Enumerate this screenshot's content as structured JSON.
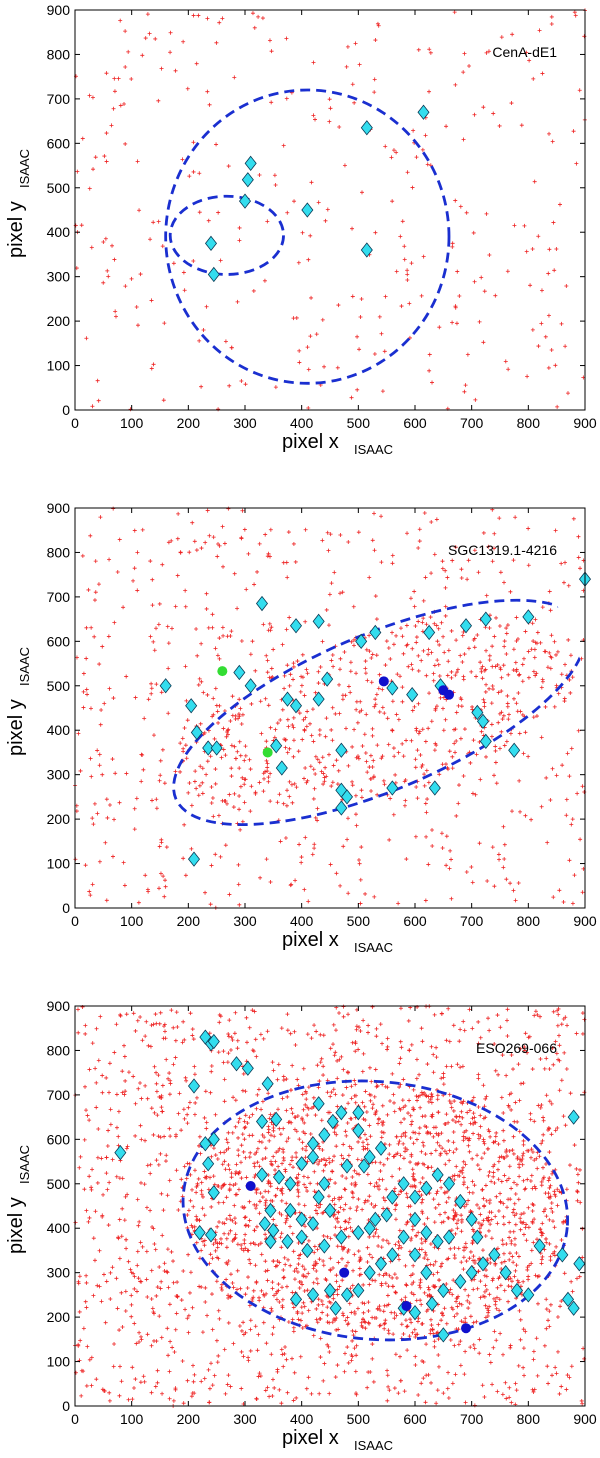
{
  "chart_data": [
    {
      "type": "scatter",
      "title": "",
      "panel_label": "CenA-dE1",
      "xlabel": "pixel x",
      "xlabel_sub": "ISAAC",
      "ylabel": "pixel y",
      "ylabel_sub": "ISAAC",
      "xlim": [
        0,
        900
      ],
      "ylim": [
        0,
        900
      ],
      "xticks": [
        0,
        100,
        200,
        300,
        400,
        500,
        600,
        700,
        800,
        900
      ],
      "yticks": [
        0,
        100,
        200,
        300,
        400,
        500,
        600,
        700,
        800,
        900
      ],
      "grid": false,
      "background_point_density": 320,
      "series": [
        {
          "marker": "diamond",
          "color": "#33ddee",
          "points": [
            [
              310,
              555
            ],
            [
              305,
              518
            ],
            [
              300,
              470
            ],
            [
              410,
              450
            ],
            [
              240,
              375
            ],
            [
              245,
              305
            ],
            [
              515,
              360
            ],
            [
              515,
              635
            ],
            [
              615,
              670
            ]
          ]
        }
      ],
      "ellipses": [
        {
          "cx": 410,
          "cy": 390,
          "rx": 250,
          "ry": 330,
          "angle": 0
        },
        {
          "cx": 268,
          "cy": 393,
          "rx": 100,
          "ry": 88,
          "angle": 0
        }
      ]
    },
    {
      "type": "scatter",
      "title": "",
      "panel_label": "SGC1319.1-4216",
      "xlabel": "pixel x",
      "xlabel_sub": "ISAAC",
      "ylabel": "pixel y",
      "ylabel_sub": "ISAAC",
      "xlim": [
        0,
        900
      ],
      "ylim": [
        0,
        900
      ],
      "xticks": [
        0,
        100,
        200,
        300,
        400,
        500,
        600,
        700,
        800,
        900
      ],
      "yticks": [
        0,
        100,
        200,
        300,
        400,
        500,
        600,
        700,
        800,
        900
      ],
      "grid": false,
      "background_point_density": 1100,
      "series": [
        {
          "marker": "diamond",
          "color": "#33ddee",
          "points": [
            [
              160,
              500
            ],
            [
              205,
              455
            ],
            [
              215,
              395
            ],
            [
              210,
              110
            ],
            [
              235,
              360
            ],
            [
              250,
              360
            ],
            [
              290,
              530
            ],
            [
              310,
              500
            ],
            [
              330,
              685
            ],
            [
              390,
              635
            ],
            [
              430,
              645
            ],
            [
              445,
              515
            ],
            [
              430,
              470
            ],
            [
              375,
              470
            ],
            [
              390,
              455
            ],
            [
              355,
              365
            ],
            [
              365,
              315
            ],
            [
              470,
              355
            ],
            [
              505,
              600
            ],
            [
              530,
              620
            ],
            [
              560,
              495
            ],
            [
              595,
              480
            ],
            [
              625,
              620
            ],
            [
              645,
              500
            ],
            [
              635,
              270
            ],
            [
              470,
              265
            ],
            [
              480,
              250
            ],
            [
              470,
              225
            ],
            [
              560,
              270
            ],
            [
              710,
              440
            ],
            [
              720,
              420
            ],
            [
              725,
              375
            ],
            [
              690,
              635
            ],
            [
              725,
              650
            ],
            [
              800,
              655
            ],
            [
              775,
              355
            ],
            [
              900,
              740
            ]
          ]
        },
        {
          "marker": "circle",
          "color": "#1010cc",
          "points": [
            [
              545,
              510
            ],
            [
              650,
              490
            ],
            [
              660,
              480
            ]
          ]
        },
        {
          "marker": "circle",
          "color": "#33dd33",
          "points": [
            [
              260,
              533
            ],
            [
              340,
              350
            ]
          ]
        }
      ],
      "ellipses": [
        {
          "cx": 537,
          "cy": 440,
          "rx": 390,
          "ry": 175,
          "angle": 23
        }
      ]
    },
    {
      "type": "scatter",
      "title": "",
      "panel_label": "ESO269-066",
      "xlabel": "pixel x",
      "xlabel_sub": "ISAAC",
      "ylabel": "pixel y",
      "ylabel_sub": "ISAAC",
      "xlim": [
        0,
        900
      ],
      "ylim": [
        0,
        900
      ],
      "xticks": [
        0,
        100,
        200,
        300,
        400,
        500,
        600,
        700,
        800,
        900
      ],
      "yticks": [
        0,
        100,
        200,
        300,
        400,
        500,
        600,
        700,
        800,
        900
      ],
      "grid": false,
      "background_point_density": 2700,
      "series": [
        {
          "marker": "diamond",
          "color": "#33ddee",
          "points": [
            [
              80,
              570
            ],
            [
              230,
              830
            ],
            [
              240,
              815
            ],
            [
              245,
              820
            ],
            [
              210,
              720
            ],
            [
              285,
              770
            ],
            [
              305,
              760
            ],
            [
              340,
              725
            ],
            [
              230,
              590
            ],
            [
              245,
              600
            ],
            [
              235,
              545
            ],
            [
              245,
              480
            ],
            [
              220,
              390
            ],
            [
              240,
              385
            ],
            [
              330,
              640
            ],
            [
              355,
              645
            ],
            [
              330,
              520
            ],
            [
              360,
              515
            ],
            [
              345,
              440
            ],
            [
              335,
              410
            ],
            [
              350,
              395
            ],
            [
              345,
              370
            ],
            [
              375,
              370
            ],
            [
              380,
              500
            ],
            [
              400,
              545
            ],
            [
              420,
              560
            ],
            [
              420,
              590
            ],
            [
              440,
              610
            ],
            [
              455,
              640
            ],
            [
              470,
              660
            ],
            [
              500,
              660
            ],
            [
              500,
              620
            ],
            [
              520,
              560
            ],
            [
              540,
              580
            ],
            [
              510,
              540
            ],
            [
              480,
              540
            ],
            [
              440,
              500
            ],
            [
              430,
              470
            ],
            [
              450,
              440
            ],
            [
              420,
              410
            ],
            [
              400,
              380
            ],
            [
              410,
              350
            ],
            [
              440,
              360
            ],
            [
              470,
              380
            ],
            [
              500,
              390
            ],
            [
              520,
              400
            ],
            [
              530,
              420
            ],
            [
              550,
              430
            ],
            [
              560,
              470
            ],
            [
              580,
              500
            ],
            [
              600,
              470
            ],
            [
              620,
              490
            ],
            [
              640,
              520
            ],
            [
              660,
              500
            ],
            [
              680,
              460
            ],
            [
              700,
              420
            ],
            [
              710,
              380
            ],
            [
              660,
              380
            ],
            [
              640,
              370
            ],
            [
              620,
              390
            ],
            [
              600,
              420
            ],
            [
              580,
              380
            ],
            [
              560,
              340
            ],
            [
              540,
              320
            ],
            [
              520,
              300
            ],
            [
              500,
              260
            ],
            [
              480,
              250
            ],
            [
              460,
              220
            ],
            [
              420,
              250
            ],
            [
              450,
              260
            ],
            [
              600,
              340
            ],
            [
              620,
              300
            ],
            [
              650,
              260
            ],
            [
              680,
              280
            ],
            [
              700,
              300
            ],
            [
              720,
              320
            ],
            [
              740,
              340
            ],
            [
              760,
              300
            ],
            [
              780,
              260
            ],
            [
              800,
              250
            ],
            [
              820,
              360
            ],
            [
              860,
              340
            ],
            [
              870,
              240
            ],
            [
              880,
              220
            ],
            [
              890,
              320
            ],
            [
              880,
              650
            ],
            [
              430,
              680
            ],
            [
              400,
              420
            ],
            [
              380,
              440
            ],
            [
              600,
              210
            ],
            [
              630,
              230
            ],
            [
              650,
              160
            ],
            [
              580,
              220
            ],
            [
              390,
              240
            ]
          ]
        },
        {
          "marker": "circle",
          "color": "#1010cc",
          "points": [
            [
              310,
              495
            ],
            [
              475,
              300
            ],
            [
              585,
              225
            ],
            [
              690,
              175
            ]
          ]
        }
      ],
      "ellipses": [
        {
          "cx": 530,
          "cy": 440,
          "rx": 340,
          "ry": 290,
          "angle": -5
        }
      ]
    }
  ]
}
